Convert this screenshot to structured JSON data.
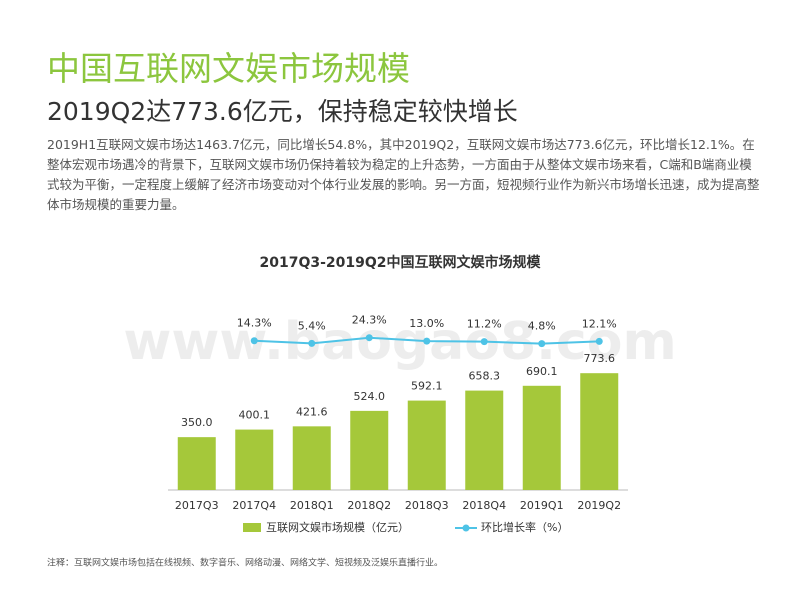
{
  "header": {
    "title": "中国互联网文娱市场规模",
    "subtitle": "2019Q2达773.6亿元，保持稳定较快增长",
    "paragraph": "2019H1互联网文娱市场达1463.7亿元，同比增长54.8%，其中2019Q2，互联网文娱市场达773.6亿元，环比增长12.1%。在整体宏观市场遇冷的背景下，互联网文娱市场仍保持着较为稳定的上升态势，一方面由于从整体文娱市场来看，C端和B端商业模式较为平衡，一定程度上缓解了经济市场变动对个体行业发展的影响。另一方面，短视频行业作为新兴市场增长迅速，成为提高整体市场规模的重要力量。"
  },
  "chart_data": {
    "type": "bar",
    "title": "2017Q3-2019Q2中国互联网文娱市场规模",
    "categories": [
      "2017Q3",
      "2017Q4",
      "2018Q1",
      "2018Q2",
      "2018Q3",
      "2018Q4",
      "2019Q1",
      "2019Q2"
    ],
    "series": [
      {
        "name": "互联网文娱市场规模（亿元）",
        "color": "#a5c83a",
        "values": [
          350,
          400.1,
          421.6,
          524,
          592.1,
          658.3,
          690.1,
          773.6
        ],
        "value_labels": [
          "350.0",
          "400.1",
          "421.6",
          "524.0",
          "592.1",
          "658.3",
          "690.1",
          "773.6"
        ]
      },
      {
        "name": "环比增长率（%）",
        "type": "line",
        "axis": "y2",
        "color": "#4ec3e6",
        "values": [
          null,
          14.3,
          5.4,
          24.3,
          13.0,
          11.2,
          4.8,
          12.1
        ],
        "value_labels": [
          null,
          "14.3%",
          "5.4%",
          "24.3%",
          "13.0%",
          "11.2%",
          "4.8%",
          "12.1%"
        ]
      }
    ],
    "ylim": [
      0,
      1000
    ],
    "y2lim": [
      -480,
      20
    ],
    "legend": "bottom"
  },
  "note": "注释：互联网文娱市场包括在线视频、数字音乐、网络动漫、网络文学、短视频及泛娱乐直播行业。",
  "watermark": "www.baogao8.com"
}
